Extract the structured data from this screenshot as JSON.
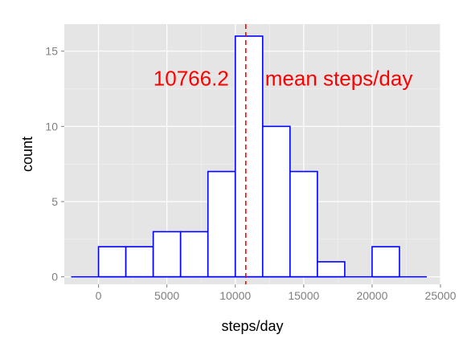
{
  "chart_data": {
    "type": "histogram",
    "xlabel": "steps/day",
    "ylabel": "count",
    "xlim": [
      -2500,
      25000
    ],
    "ylim": [
      -0.5,
      16.8
    ],
    "x_ticks": [
      0,
      5000,
      10000,
      15000,
      20000,
      25000
    ],
    "y_ticks": [
      0,
      5,
      10,
      15
    ],
    "x_tick_labels": [
      "0",
      "5000",
      "10000",
      "15000",
      "20000",
      "25000"
    ],
    "y_tick_labels": [
      "0",
      "5",
      "10",
      "15"
    ],
    "bin_width": 2000,
    "baseline_range": [
      -2000,
      24000
    ],
    "bins": [
      {
        "x0": 0,
        "x1": 2000,
        "count": 2
      },
      {
        "x0": 2000,
        "x1": 4000,
        "count": 2
      },
      {
        "x0": 4000,
        "x1": 6000,
        "count": 3
      },
      {
        "x0": 6000,
        "x1": 8000,
        "count": 3
      },
      {
        "x0": 8000,
        "x1": 10000,
        "count": 7
      },
      {
        "x0": 10000,
        "x1": 12000,
        "count": 16
      },
      {
        "x0": 12000,
        "x1": 14000,
        "count": 10
      },
      {
        "x0": 14000,
        "x1": 16000,
        "count": 7
      },
      {
        "x0": 16000,
        "x1": 18000,
        "count": 1
      },
      {
        "x0": 18000,
        "x1": 20000,
        "count": 0
      },
      {
        "x0": 20000,
        "x1": 22000,
        "count": 2
      }
    ],
    "mean_line": {
      "x": 10766.2
    },
    "annotations": [
      {
        "text": "10766.2",
        "anchor": "right-of-mean"
      },
      {
        "text": "mean steps/day",
        "anchor": "left-of-mean"
      }
    ],
    "grid": true,
    "legend": "none",
    "colors": {
      "panel_bg": "#e5e5e5",
      "grid_major": "#ffffff",
      "grid_minor": "#f2f2f2",
      "bar_fill": "#ffffff",
      "bar_stroke": "#0000ff",
      "mean_line": "#ff0000",
      "annotation_text": "#ff0000",
      "tick_text": "#7f7f7f",
      "axis_title_text": "#000000"
    }
  }
}
